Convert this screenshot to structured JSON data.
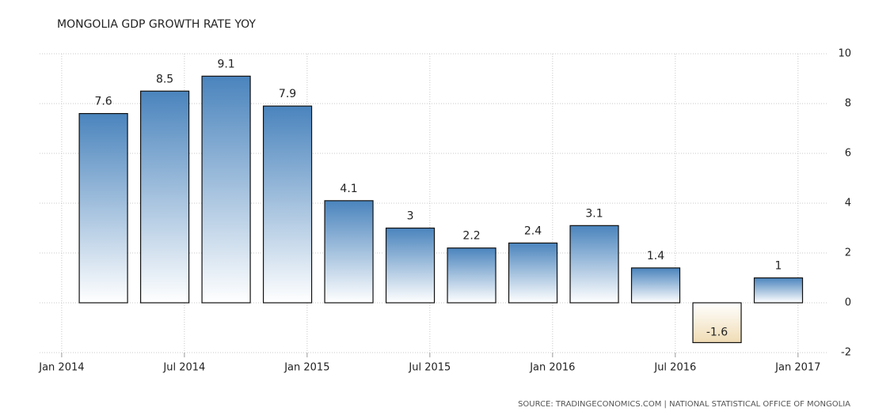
{
  "chart_data": {
    "type": "bar",
    "title": "MONGOLIA GDP GROWTH RATE YOY",
    "source": "SOURCE: TRADINGECONOMICS.COM | NATIONAL STATISTICAL OFFICE OF MONGOLIA",
    "x": [
      2014.17,
      2014.42,
      2014.67,
      2014.92,
      2015.17,
      2015.42,
      2015.67,
      2015.92,
      2016.17,
      2016.42,
      2016.67,
      2016.92
    ],
    "values": [
      7.6,
      8.5,
      9.1,
      7.9,
      4.1,
      3,
      2.2,
      2.4,
      3.1,
      1.4,
      -1.6,
      1
    ],
    "color": "#4a84bd",
    "negative_color": "#f0dcb4",
    "xlim": [
      2013.91,
      2017.12
    ],
    "xticks": [
      {
        "value": 2014,
        "label": "Jan 2014"
      },
      {
        "value": 2014.5,
        "label": "Jul 2014"
      },
      {
        "value": 2015,
        "label": "Jan 2015"
      },
      {
        "value": 2015.5,
        "label": "Jul 2015"
      },
      {
        "value": 2016,
        "label": "Jan 2016"
      },
      {
        "value": 2016.5,
        "label": "Jul 2016"
      },
      {
        "value": 2017,
        "label": "Jan 2017"
      }
    ],
    "ylim": [
      -2,
      10
    ],
    "yticks": [
      -2,
      0,
      2,
      4,
      6,
      8,
      10
    ],
    "grid": true
  }
}
